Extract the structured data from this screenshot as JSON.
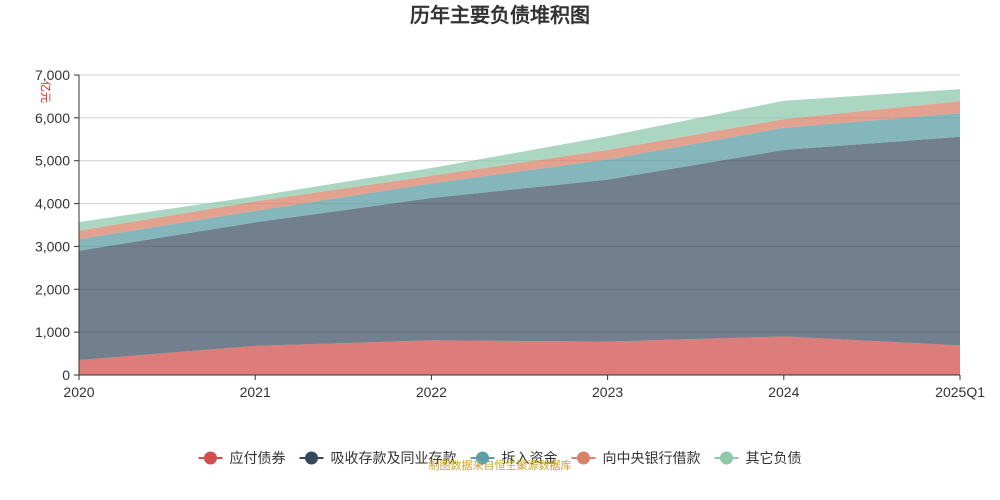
{
  "chart_data": {
    "type": "area",
    "stacked": true,
    "title": "历年主要负债堆积图",
    "unit": "亿元",
    "categories": [
      "2020",
      "2021",
      "2022",
      "2023",
      "2024",
      "2025Q1"
    ],
    "ylim": [
      0,
      7000
    ],
    "yticks": [
      0,
      1000,
      2000,
      3000,
      4000,
      5000,
      6000,
      7000
    ],
    "ytick_labels": [
      "0",
      "1,000",
      "2,000",
      "3,000",
      "4,000",
      "5,000",
      "6,000",
      "7,000"
    ],
    "grid": true,
    "legend_position": "bottom",
    "series": [
      {
        "name": "应付债券",
        "color": "#d0504f",
        "values": [
          350,
          680,
          810,
          780,
          900,
          690
        ]
      },
      {
        "name": "吸收存款及同业存款",
        "color": "#34495e",
        "values": [
          2550,
          2880,
          3320,
          3780,
          4350,
          4870
        ]
      },
      {
        "name": "拆入资金",
        "color": "#5b9ea6",
        "values": [
          270,
          270,
          340,
          470,
          520,
          550
        ]
      },
      {
        "name": "向中央银行借款",
        "color": "#d9826a",
        "values": [
          200,
          220,
          180,
          220,
          200,
          280
        ]
      },
      {
        "name": "其它负债",
        "color": "#8fc9ad",
        "values": [
          200,
          120,
          180,
          320,
          430,
          280
        ]
      }
    ]
  },
  "footer": {
    "source": "制图数据来自恒生聚源数据库"
  }
}
